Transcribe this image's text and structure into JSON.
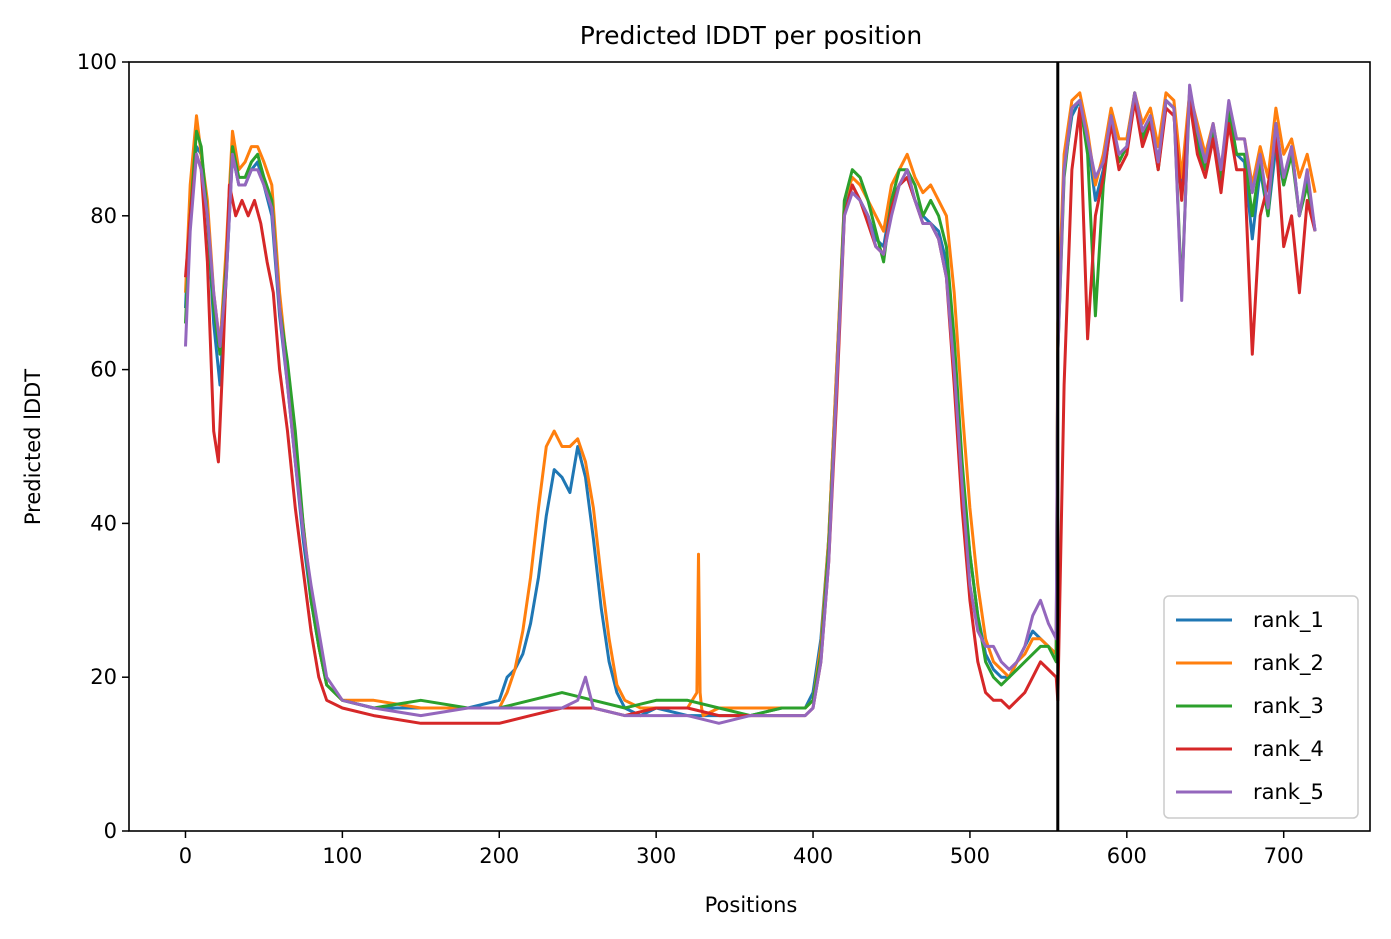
{
  "chart_data": {
    "type": "line",
    "title": "Predicted lDDT per position",
    "xlabel": "Positions",
    "ylabel": "Predicted lDDT",
    "xlim": [
      -36,
      755
    ],
    "ylim": [
      0,
      100
    ],
    "xticks": [
      0,
      100,
      200,
      300,
      400,
      500,
      600,
      700
    ],
    "yticks": [
      0,
      20,
      40,
      60,
      80,
      100
    ],
    "grid": false,
    "legend_position": "bottom-right",
    "chain_break_x": 556,
    "series": [
      {
        "name": "rank_1",
        "color": "#1f77b4",
        "x": [
          0,
          3,
          7,
          10,
          14,
          18,
          22,
          26,
          30,
          34,
          38,
          42,
          46,
          50,
          55,
          60,
          65,
          70,
          75,
          80,
          85,
          90,
          100,
          120,
          150,
          180,
          200,
          205,
          210,
          215,
          220,
          225,
          230,
          235,
          240,
          245,
          250,
          255,
          260,
          265,
          270,
          275,
          280,
          290,
          300,
          320,
          340,
          360,
          380,
          395,
          400,
          405,
          410,
          415,
          420,
          425,
          430,
          435,
          440,
          445,
          450,
          455,
          460,
          465,
          470,
          475,
          480,
          485,
          490,
          495,
          500,
          505,
          510,
          515,
          520,
          525,
          530,
          535,
          540,
          545,
          550,
          555,
          556,
          560,
          565,
          570,
          575,
          580,
          585,
          590,
          595,
          600,
          605,
          610,
          615,
          620,
          625,
          630,
          635,
          640,
          645,
          650,
          655,
          660,
          665,
          670,
          675,
          680,
          685,
          690,
          695,
          700,
          705,
          710,
          715,
          720
        ],
        "y": [
          68,
          82,
          89,
          88,
          80,
          66,
          58,
          72,
          88,
          84,
          84,
          86,
          87,
          84,
          80,
          67,
          58,
          48,
          38,
          30,
          24,
          19,
          17,
          16,
          16,
          16,
          17,
          20,
          21,
          23,
          27,
          33,
          41,
          47,
          46,
          44,
          50,
          46,
          38,
          29,
          22,
          18,
          16,
          15,
          16,
          15,
          15,
          15,
          16,
          16,
          18,
          25,
          38,
          60,
          81,
          84,
          82,
          80,
          77,
          76,
          82,
          84,
          85,
          82,
          80,
          79,
          78,
          74,
          62,
          46,
          36,
          28,
          23,
          21,
          20,
          20,
          22,
          24,
          26,
          25,
          24,
          23,
          64,
          86,
          93,
          95,
          90,
          82,
          86,
          92,
          88,
          89,
          95,
          90,
          93,
          87,
          95,
          94,
          83,
          96,
          90,
          87,
          91,
          84,
          93,
          88,
          87,
          77,
          86,
          80,
          89,
          84,
          89,
          80,
          85,
          78
        ]
      },
      {
        "name": "rank_2",
        "color": "#ff7f0e",
        "x": [
          0,
          3,
          7,
          10,
          14,
          18,
          22,
          26,
          30,
          34,
          38,
          42,
          46,
          50,
          55,
          60,
          65,
          70,
          75,
          80,
          85,
          90,
          100,
          120,
          150,
          180,
          200,
          205,
          210,
          215,
          220,
          225,
          230,
          235,
          240,
          245,
          250,
          255,
          260,
          265,
          270,
          275,
          280,
          290,
          300,
          320,
          326,
          327,
          328,
          329,
          330,
          340,
          360,
          380,
          395,
          400,
          405,
          410,
          415,
          420,
          425,
          430,
          435,
          440,
          445,
          450,
          455,
          460,
          465,
          470,
          475,
          480,
          485,
          490,
          495,
          500,
          505,
          510,
          515,
          520,
          525,
          530,
          535,
          540,
          545,
          550,
          555,
          556,
          560,
          565,
          570,
          575,
          580,
          585,
          590,
          595,
          600,
          605,
          610,
          615,
          620,
          625,
          630,
          635,
          640,
          645,
          650,
          655,
          660,
          665,
          670,
          675,
          680,
          685,
          690,
          695,
          700,
          705,
          710,
          715,
          720
        ],
        "y": [
          70,
          84,
          93,
          88,
          82,
          70,
          63,
          76,
          91,
          86,
          87,
          89,
          89,
          87,
          84,
          70,
          60,
          50,
          40,
          31,
          24,
          19,
          17,
          17,
          16,
          16,
          16,
          18,
          21,
          26,
          33,
          42,
          50,
          52,
          50,
          50,
          51,
          48,
          42,
          33,
          25,
          19,
          17,
          16,
          16,
          16,
          18,
          36,
          18,
          16,
          15,
          16,
          16,
          16,
          16,
          17,
          24,
          38,
          60,
          82,
          85,
          84,
          82,
          80,
          78,
          84,
          86,
          88,
          85,
          83,
          84,
          82,
          80,
          70,
          55,
          42,
          32,
          25,
          22,
          21,
          20,
          22,
          23,
          25,
          25,
          24,
          23,
          66,
          88,
          95,
          96,
          91,
          84,
          88,
          94,
          90,
          90,
          96,
          92,
          94,
          89,
          96,
          95,
          85,
          96,
          92,
          88,
          92,
          86,
          94,
          90,
          90,
          84,
          89,
          85,
          94,
          88,
          90,
          85,
          88,
          83
        ]
      },
      {
        "name": "rank_3",
        "color": "#2ca02c",
        "x": [
          0,
          3,
          7,
          10,
          14,
          18,
          22,
          26,
          30,
          34,
          38,
          42,
          46,
          50,
          55,
          60,
          65,
          70,
          75,
          80,
          85,
          90,
          100,
          120,
          150,
          180,
          200,
          220,
          240,
          260,
          280,
          300,
          320,
          340,
          360,
          380,
          395,
          400,
          405,
          410,
          415,
          420,
          425,
          430,
          435,
          440,
          445,
          450,
          455,
          460,
          465,
          470,
          475,
          480,
          485,
          490,
          495,
          500,
          505,
          510,
          515,
          520,
          525,
          530,
          535,
          540,
          545,
          550,
          555,
          556,
          560,
          565,
          570,
          575,
          580,
          585,
          590,
          595,
          600,
          605,
          610,
          615,
          620,
          625,
          630,
          635,
          640,
          645,
          650,
          655,
          660,
          665,
          670,
          675,
          680,
          685,
          690,
          695,
          700,
          705,
          710,
          715,
          720
        ],
        "y": [
          66,
          80,
          91,
          89,
          80,
          68,
          62,
          74,
          89,
          85,
          85,
          87,
          88,
          85,
          82,
          68,
          61,
          52,
          40,
          30,
          24,
          19,
          17,
          16,
          17,
          16,
          16,
          17,
          18,
          17,
          16,
          17,
          17,
          16,
          15,
          16,
          16,
          17,
          23,
          37,
          58,
          82,
          86,
          85,
          82,
          78,
          74,
          82,
          86,
          86,
          84,
          80,
          82,
          80,
          76,
          64,
          48,
          36,
          28,
          22,
          20,
          19,
          20,
          21,
          22,
          23,
          24,
          24,
          22,
          62,
          85,
          94,
          95,
          88,
          67,
          84,
          93,
          87,
          89,
          96,
          90,
          93,
          86,
          95,
          94,
          70,
          96,
          89,
          86,
          91,
          85,
          94,
          88,
          88,
          80,
          87,
          80,
          92,
          84,
          88,
          80,
          84,
          78
        ]
      },
      {
        "name": "rank_4",
        "color": "#d62728",
        "x": [
          0,
          3,
          7,
          10,
          14,
          18,
          21,
          24,
          28,
          32,
          36,
          40,
          44,
          48,
          52,
          56,
          60,
          65,
          70,
          75,
          80,
          85,
          90,
          100,
          120,
          150,
          180,
          200,
          220,
          240,
          260,
          280,
          300,
          320,
          340,
          360,
          380,
          395,
          400,
          405,
          410,
          415,
          420,
          425,
          430,
          435,
          440,
          445,
          450,
          455,
          460,
          465,
          470,
          475,
          480,
          485,
          490,
          495,
          500,
          505,
          510,
          515,
          520,
          525,
          530,
          535,
          540,
          545,
          550,
          555,
          556,
          560,
          565,
          570,
          575,
          580,
          585,
          590,
          595,
          600,
          605,
          610,
          615,
          620,
          625,
          630,
          635,
          640,
          645,
          650,
          655,
          660,
          665,
          670,
          675,
          680,
          685,
          690,
          695,
          700,
          705,
          710,
          715,
          720
        ],
        "y": [
          72,
          80,
          88,
          86,
          74,
          52,
          48,
          62,
          84,
          80,
          82,
          80,
          82,
          79,
          74,
          70,
          60,
          52,
          42,
          34,
          26,
          20,
          17,
          16,
          15,
          14,
          14,
          14,
          15,
          16,
          16,
          15,
          16,
          16,
          15,
          15,
          15,
          15,
          16,
          22,
          35,
          56,
          80,
          84,
          82,
          79,
          76,
          75,
          81,
          84,
          85,
          82,
          79,
          79,
          77,
          72,
          58,
          42,
          30,
          22,
          18,
          17,
          17,
          16,
          17,
          18,
          20,
          22,
          21,
          20,
          17,
          58,
          86,
          94,
          64,
          80,
          85,
          92,
          86,
          88,
          95,
          89,
          92,
          86,
          94,
          93,
          82,
          95,
          88,
          85,
          90,
          83,
          92,
          86,
          86,
          62,
          80,
          84,
          90,
          76,
          80,
          70,
          82,
          78
        ]
      },
      {
        "name": "rank_5",
        "color": "#9467bd",
        "x": [
          0,
          3,
          7,
          10,
          14,
          18,
          22,
          26,
          30,
          34,
          38,
          42,
          46,
          50,
          55,
          60,
          65,
          70,
          75,
          80,
          85,
          90,
          100,
          120,
          150,
          180,
          200,
          220,
          240,
          250,
          255,
          260,
          280,
          300,
          320,
          340,
          360,
          380,
          395,
          400,
          405,
          410,
          415,
          420,
          425,
          430,
          435,
          440,
          445,
          450,
          455,
          460,
          465,
          470,
          475,
          480,
          485,
          490,
          495,
          500,
          505,
          510,
          515,
          520,
          525,
          530,
          535,
          540,
          545,
          550,
          555,
          556,
          560,
          565,
          570,
          575,
          580,
          585,
          590,
          595,
          600,
          605,
          610,
          615,
          620,
          625,
          630,
          635,
          640,
          645,
          650,
          655,
          660,
          665,
          670,
          675,
          680,
          685,
          690,
          695,
          700,
          705,
          710,
          715,
          720
        ],
        "y": [
          63,
          78,
          88,
          86,
          80,
          70,
          63,
          72,
          88,
          84,
          84,
          86,
          86,
          84,
          81,
          68,
          58,
          48,
          39,
          32,
          26,
          20,
          17,
          16,
          15,
          16,
          16,
          16,
          16,
          17,
          20,
          16,
          15,
          15,
          15,
          14,
          15,
          15,
          15,
          16,
          22,
          35,
          58,
          80,
          83,
          82,
          80,
          76,
          75,
          80,
          84,
          86,
          82,
          79,
          79,
          77,
          72,
          60,
          45,
          32,
          26,
          24,
          24,
          22,
          21,
          22,
          24,
          28,
          30,
          27,
          25,
          62,
          86,
          94,
          95,
          90,
          85,
          87,
          93,
          88,
          89,
          96,
          91,
          93,
          87,
          95,
          94,
          69,
          97,
          91,
          87,
          92,
          86,
          95,
          90,
          90,
          83,
          88,
          81,
          92,
          85,
          89,
          80,
          86,
          78
        ]
      }
    ]
  }
}
